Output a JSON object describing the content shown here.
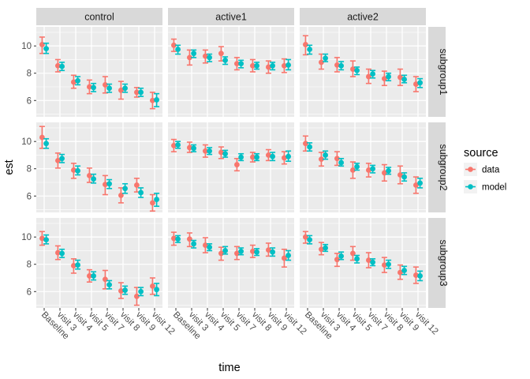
{
  "figure": {
    "xlabel": "time",
    "ylabel": "est",
    "legend": {
      "title": "source",
      "items": [
        {
          "label": "data",
          "color": "#F8766D"
        },
        {
          "label": "model",
          "color": "#00BFC4"
        }
      ]
    }
  },
  "chart_data": {
    "type": "pointrange",
    "title": "",
    "xlabel": "time",
    "ylabel": "est",
    "legend_title": "source",
    "legend_position": "right",
    "grid": "on",
    "facet_columns": [
      "control",
      "active1",
      "active2"
    ],
    "facet_rows": [
      "subgroup1",
      "subgroup2",
      "subgroup3"
    ],
    "categories": [
      "Baseline",
      "visit 3",
      "visit 4",
      "visit 5",
      "visit 7",
      "visit 8",
      "visit 9",
      "visit 12"
    ],
    "yticks": [
      6,
      8,
      10
    ],
    "ytick_labels": [
      "6",
      "8",
      "10"
    ],
    "yminor": [
      5,
      7,
      9,
      11
    ],
    "ylim": [
      4.8,
      11.4
    ],
    "series_names": [
      "data",
      "model"
    ],
    "colors": {
      "data": "#F8766D",
      "model": "#00BFC4",
      "panel_bg": "#EBEBEB",
      "strip_bg": "#D9D9D9",
      "grid": "#FFFFFF",
      "tick": "#333333",
      "tick_label": "#4D4D4D",
      "strip_text": "#1A1A1A",
      "title_text": "#000000",
      "legend_key_bg": "#F2F2F2"
    },
    "panels": [
      {
        "row": "subgroup1",
        "col": "control",
        "data": [
          [
            10.1,
            9.45,
            10.65
          ],
          [
            8.55,
            8.1,
            9.0
          ],
          [
            7.35,
            6.9,
            7.85
          ],
          [
            7.0,
            6.5,
            7.5
          ],
          [
            7.15,
            6.55,
            7.75
          ],
          [
            6.75,
            6.1,
            7.4
          ],
          [
            6.6,
            6.25,
            6.95
          ],
          [
            6.0,
            5.4,
            6.6
          ]
        ],
        "model": [
          [
            9.8,
            9.45,
            10.2
          ],
          [
            8.5,
            8.2,
            8.8
          ],
          [
            7.45,
            7.15,
            7.75
          ],
          [
            6.95,
            6.65,
            7.25
          ],
          [
            6.9,
            6.6,
            7.2
          ],
          [
            6.9,
            6.6,
            7.2
          ],
          [
            6.6,
            6.3,
            6.9
          ],
          [
            6.05,
            5.55,
            6.5
          ]
        ]
      },
      {
        "row": "subgroup1",
        "col": "active1",
        "data": [
          [
            10.05,
            9.6,
            10.5
          ],
          [
            9.15,
            8.6,
            9.7
          ],
          [
            9.25,
            8.75,
            9.7
          ],
          [
            9.45,
            8.9,
            9.95
          ],
          [
            8.7,
            8.25,
            9.15
          ],
          [
            8.55,
            8.1,
            9.0
          ],
          [
            8.45,
            8.0,
            8.9
          ],
          [
            8.55,
            8.05,
            9.05
          ]
        ],
        "model": [
          [
            9.75,
            9.4,
            10.05
          ],
          [
            9.45,
            9.15,
            9.7
          ],
          [
            9.15,
            8.85,
            9.4
          ],
          [
            8.95,
            8.65,
            9.2
          ],
          [
            8.7,
            8.4,
            8.95
          ],
          [
            8.55,
            8.3,
            8.8
          ],
          [
            8.55,
            8.25,
            8.8
          ],
          [
            8.6,
            8.25,
            9.0
          ]
        ]
      },
      {
        "row": "subgroup1",
        "col": "active2",
        "data": [
          [
            10.1,
            9.35,
            10.75
          ],
          [
            8.8,
            8.3,
            9.4
          ],
          [
            8.6,
            8.1,
            9.15
          ],
          [
            8.3,
            7.75,
            8.9
          ],
          [
            7.75,
            7.25,
            8.3
          ],
          [
            7.6,
            7.1,
            8.15
          ],
          [
            7.7,
            7.1,
            8.3
          ],
          [
            7.2,
            6.65,
            7.75
          ]
        ],
        "model": [
          [
            9.75,
            9.4,
            10.05
          ],
          [
            9.1,
            8.85,
            9.4
          ],
          [
            8.55,
            8.25,
            8.85
          ],
          [
            8.2,
            7.9,
            8.45
          ],
          [
            7.95,
            7.65,
            8.2
          ],
          [
            7.75,
            7.45,
            8.0
          ],
          [
            7.55,
            7.3,
            7.85
          ],
          [
            7.3,
            6.95,
            7.6
          ]
        ]
      },
      {
        "row": "subgroup2",
        "col": "control",
        "data": [
          [
            10.3,
            9.5,
            11.1
          ],
          [
            8.6,
            8.05,
            9.15
          ],
          [
            7.9,
            7.3,
            8.4
          ],
          [
            7.5,
            7.0,
            8.05
          ],
          [
            6.85,
            6.1,
            7.5
          ],
          [
            6.05,
            5.5,
            6.6
          ],
          [
            6.8,
            6.3,
            7.3
          ],
          [
            5.5,
            4.9,
            6.1
          ]
        ],
        "model": [
          [
            9.85,
            9.5,
            10.2
          ],
          [
            8.75,
            8.45,
            9.05
          ],
          [
            7.85,
            7.55,
            8.2
          ],
          [
            7.25,
            6.95,
            7.6
          ],
          [
            6.9,
            6.55,
            7.2
          ],
          [
            6.55,
            6.2,
            6.9
          ],
          [
            6.25,
            5.9,
            6.6
          ],
          [
            5.75,
            5.25,
            6.2
          ]
        ]
      },
      {
        "row": "subgroup2",
        "col": "active1",
        "data": [
          [
            9.7,
            9.25,
            10.15
          ],
          [
            9.55,
            9.2,
            9.95
          ],
          [
            9.3,
            8.85,
            9.75
          ],
          [
            9.2,
            8.75,
            9.6
          ],
          [
            8.3,
            7.85,
            8.75
          ],
          [
            8.85,
            8.5,
            9.2
          ],
          [
            9.0,
            8.6,
            9.4
          ],
          [
            8.8,
            8.35,
            9.25
          ]
        ],
        "model": [
          [
            9.75,
            9.5,
            10.0
          ],
          [
            9.5,
            9.25,
            9.75
          ],
          [
            9.3,
            9.05,
            9.55
          ],
          [
            9.1,
            8.85,
            9.35
          ],
          [
            8.85,
            8.6,
            9.1
          ],
          [
            8.85,
            8.6,
            9.1
          ],
          [
            8.9,
            8.6,
            9.2
          ],
          [
            8.9,
            8.55,
            9.3
          ]
        ]
      },
      {
        "row": "subgroup2",
        "col": "active2",
        "data": [
          [
            9.85,
            9.3,
            10.4
          ],
          [
            8.7,
            8.2,
            9.2
          ],
          [
            8.75,
            8.25,
            9.25
          ],
          [
            7.9,
            7.3,
            8.5
          ],
          [
            7.9,
            7.4,
            8.4
          ],
          [
            7.7,
            7.1,
            8.3
          ],
          [
            7.55,
            6.9,
            8.2
          ],
          [
            6.8,
            6.2,
            7.4
          ]
        ],
        "model": [
          [
            9.6,
            9.3,
            9.9
          ],
          [
            9.0,
            8.7,
            9.3
          ],
          [
            8.45,
            8.2,
            8.75
          ],
          [
            8.15,
            7.9,
            8.4
          ],
          [
            8.0,
            7.7,
            8.25
          ],
          [
            7.85,
            7.6,
            8.1
          ],
          [
            7.4,
            7.1,
            7.7
          ],
          [
            6.95,
            6.6,
            7.3
          ]
        ]
      },
      {
        "row": "subgroup3",
        "col": "control",
        "data": [
          [
            9.9,
            9.4,
            10.4
          ],
          [
            8.85,
            8.35,
            9.35
          ],
          [
            7.9,
            7.35,
            8.4
          ],
          [
            7.15,
            6.7,
            7.6
          ],
          [
            6.9,
            6.2,
            7.55
          ],
          [
            6.05,
            5.5,
            6.65
          ],
          [
            5.65,
            5.0,
            6.3
          ],
          [
            6.4,
            5.8,
            7.0
          ]
        ],
        "model": [
          [
            9.8,
            9.5,
            10.15
          ],
          [
            8.8,
            8.5,
            9.1
          ],
          [
            7.95,
            7.65,
            8.3
          ],
          [
            7.15,
            6.85,
            7.45
          ],
          [
            6.5,
            6.2,
            6.8
          ],
          [
            6.1,
            5.8,
            6.4
          ],
          [
            6.0,
            5.7,
            6.3
          ],
          [
            6.15,
            5.7,
            6.6
          ]
        ]
      },
      {
        "row": "subgroup3",
        "col": "active1",
        "data": [
          [
            9.9,
            9.4,
            10.35
          ],
          [
            9.85,
            9.3,
            10.3
          ],
          [
            9.4,
            8.85,
            9.95
          ],
          [
            8.8,
            8.3,
            9.25
          ],
          [
            8.8,
            8.35,
            9.3
          ],
          [
            8.95,
            8.5,
            9.4
          ],
          [
            9.05,
            8.6,
            9.55
          ],
          [
            8.45,
            7.8,
            9.1
          ]
        ],
        "model": [
          [
            9.85,
            9.6,
            10.1
          ],
          [
            9.5,
            9.2,
            9.75
          ],
          [
            9.25,
            9.0,
            9.5
          ],
          [
            9.0,
            8.75,
            9.3
          ],
          [
            8.95,
            8.7,
            9.2
          ],
          [
            8.9,
            8.65,
            9.15
          ],
          [
            8.9,
            8.6,
            9.2
          ],
          [
            8.65,
            8.3,
            9.0
          ]
        ]
      },
      {
        "row": "subgroup3",
        "col": "active2",
        "data": [
          [
            10.0,
            9.55,
            10.4
          ],
          [
            9.1,
            8.7,
            9.6
          ],
          [
            8.35,
            7.85,
            8.8
          ],
          [
            8.8,
            8.3,
            9.3
          ],
          [
            8.3,
            7.75,
            8.85
          ],
          [
            7.95,
            7.4,
            8.5
          ],
          [
            7.4,
            6.9,
            7.95
          ],
          [
            7.2,
            6.6,
            7.8
          ]
        ],
        "model": [
          [
            9.8,
            9.5,
            10.1
          ],
          [
            9.2,
            8.95,
            9.45
          ],
          [
            8.6,
            8.35,
            8.9
          ],
          [
            8.4,
            8.1,
            8.65
          ],
          [
            8.15,
            7.9,
            8.4
          ],
          [
            8.0,
            7.7,
            8.3
          ],
          [
            7.55,
            7.25,
            7.85
          ],
          [
            7.15,
            6.8,
            7.5
          ]
        ]
      }
    ]
  }
}
